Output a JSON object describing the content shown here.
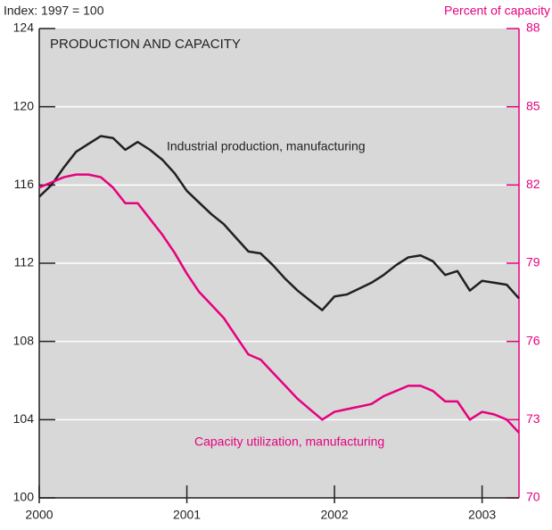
{
  "chart_data": {
    "type": "line",
    "title": "PRODUCTION AND CAPACITY",
    "y_label": "Index: 1997 = 100",
    "y2_label": "Percent of capacity",
    "annotations": [
      "Industrial production, manufacturing",
      "Capacity utilization, manufacturing"
    ],
    "x": [
      2000,
      2000.083,
      2000.167,
      2000.25,
      2000.333,
      2000.417,
      2000.5,
      2000.583,
      2000.667,
      2000.75,
      2000.833,
      2000.917,
      2001,
      2001.083,
      2001.167,
      2001.25,
      2001.333,
      2001.417,
      2001.5,
      2001.583,
      2001.667,
      2001.75,
      2001.833,
      2001.917,
      2002,
      2002.083,
      2002.167,
      2002.25,
      2002.333,
      2002.417,
      2002.5,
      2002.583,
      2002.667,
      2002.75,
      2002.833,
      2002.917,
      2003,
      2003.083,
      2003.167,
      2003.25
    ],
    "series": [
      {
        "name": "Industrial production, manufacturing",
        "color": "#231f20",
        "axis": "y",
        "values": [
          115.4,
          116.0,
          116.9,
          117.7,
          118.1,
          118.5,
          118.4,
          117.8,
          118.2,
          117.8,
          117.3,
          116.6,
          115.7,
          115.1,
          114.5,
          114.0,
          113.3,
          112.6,
          112.5,
          111.9,
          111.2,
          110.6,
          110.1,
          109.6,
          110.3,
          110.4,
          110.7,
          111.0,
          111.4,
          111.9,
          112.3,
          112.4,
          112.1,
          111.4,
          111.6,
          110.6,
          111.1,
          111.0,
          110.9,
          110.2
        ]
      },
      {
        "name": "Capacity utilization, manufacturing",
        "color": "#e6007e",
        "axis": "y2",
        "values": [
          81.9,
          82.1,
          82.3,
          82.4,
          82.4,
          82.3,
          81.9,
          81.3,
          81.3,
          80.7,
          80.1,
          79.4,
          78.6,
          77.9,
          77.4,
          76.9,
          76.2,
          75.5,
          75.3,
          74.8,
          74.3,
          73.8,
          73.4,
          73.0,
          73.3,
          73.4,
          73.5,
          73.6,
          73.9,
          74.1,
          74.3,
          74.3,
          74.1,
          73.7,
          73.7,
          73.0,
          73.3,
          73.2,
          73.0,
          72.5
        ]
      }
    ],
    "xlim": [
      2000,
      2003.25
    ],
    "xticks": [
      2000,
      2001,
      2002,
      2003
    ],
    "ylim": [
      100,
      124
    ],
    "yticks": [
      100,
      104,
      108,
      112,
      116,
      120,
      124
    ],
    "y2lim": [
      70,
      88
    ],
    "y2ticks": [
      70,
      73,
      76,
      79,
      82,
      85,
      88
    ],
    "grid": true
  }
}
